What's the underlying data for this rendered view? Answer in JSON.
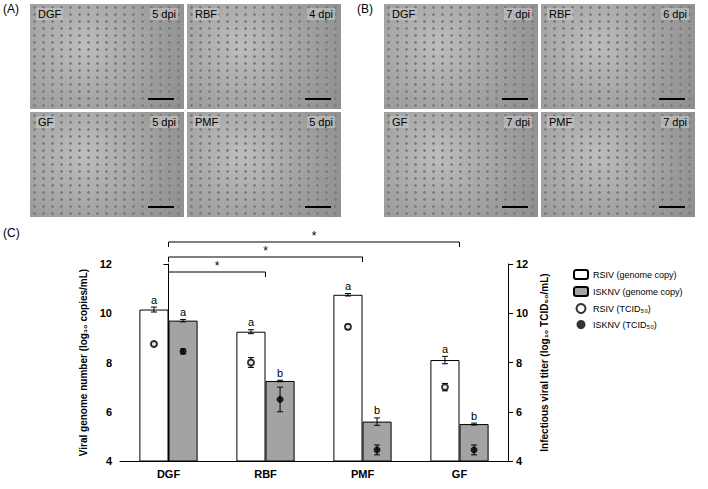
{
  "figure_panels": [
    {
      "letter": "(A)",
      "images": [
        {
          "label": "DGF",
          "time": "5 dpi"
        },
        {
          "label": "RBF",
          "time": "4 dpi"
        },
        {
          "label": "GF",
          "time": "5 dpi"
        },
        {
          "label": "PMF",
          "time": "5 dpi"
        }
      ]
    },
    {
      "letter": "(B)",
      "images": [
        {
          "label": "DGF",
          "time": "7 dpi"
        },
        {
          "label": "RBF",
          "time": "6 dpi"
        },
        {
          "label": "GF",
          "time": "7 dpi"
        },
        {
          "label": "PMF",
          "time": "7 dpi"
        }
      ]
    }
  ],
  "chart_letter": "(C)",
  "chart_data": {
    "type": "bar",
    "categories": [
      "DGF",
      "RBF",
      "PMF",
      "GF"
    ],
    "y_label": "Viral genome number (log₁₀ copies/mL)",
    "y2_label": "Infectious viral titer (log₁₀ TCID₅₀/mL)",
    "ylim": [
      4,
      12
    ],
    "yticks": [
      4,
      6,
      8,
      10,
      12
    ],
    "y2lim": [
      4,
      12
    ],
    "y2ticks": [
      4,
      6,
      8,
      10,
      12
    ],
    "grid": false,
    "legend": "right",
    "series": [
      {
        "name": "RSIV (genome copy)",
        "type": "bar",
        "color": "#ffffff",
        "values": [
          10.15,
          9.25,
          10.75,
          8.1
        ],
        "errors": [
          0.1,
          0.08,
          0.05,
          0.15
        ],
        "letters": [
          "a",
          "a",
          "a",
          "a"
        ]
      },
      {
        "name": "ISKNV (genome copy)",
        "type": "bar",
        "color": "#a3a3a3",
        "values": [
          9.7,
          7.25,
          5.6,
          5.5
        ],
        "errors": [
          0.05,
          0.03,
          0.15,
          0.04
        ],
        "letters": [
          "a",
          "b",
          "b",
          "b"
        ]
      },
      {
        "name": "RSIV (TCID₅₀)",
        "type": "scatter",
        "axis": "y2",
        "marker": "open_circle",
        "color": "#000000",
        "values": [
          8.75,
          8.0,
          9.45,
          7.0
        ],
        "errors": [
          0.05,
          0.2,
          0.1,
          0.15
        ]
      },
      {
        "name": "ISKNV (TCID₅₀)",
        "type": "scatter",
        "axis": "y2",
        "marker": "circle",
        "color": "#000000",
        "values": [
          8.45,
          6.5,
          4.45,
          4.45
        ],
        "errors": [
          0.1,
          0.5,
          0.2,
          0.2
        ]
      }
    ],
    "annotations": [
      {
        "text": "*",
        "from": "DGF",
        "to": "RBF"
      },
      {
        "text": "*",
        "from": "DGF",
        "to": "PMF"
      },
      {
        "text": "*",
        "from": "DGF",
        "to": "GF"
      }
    ]
  }
}
